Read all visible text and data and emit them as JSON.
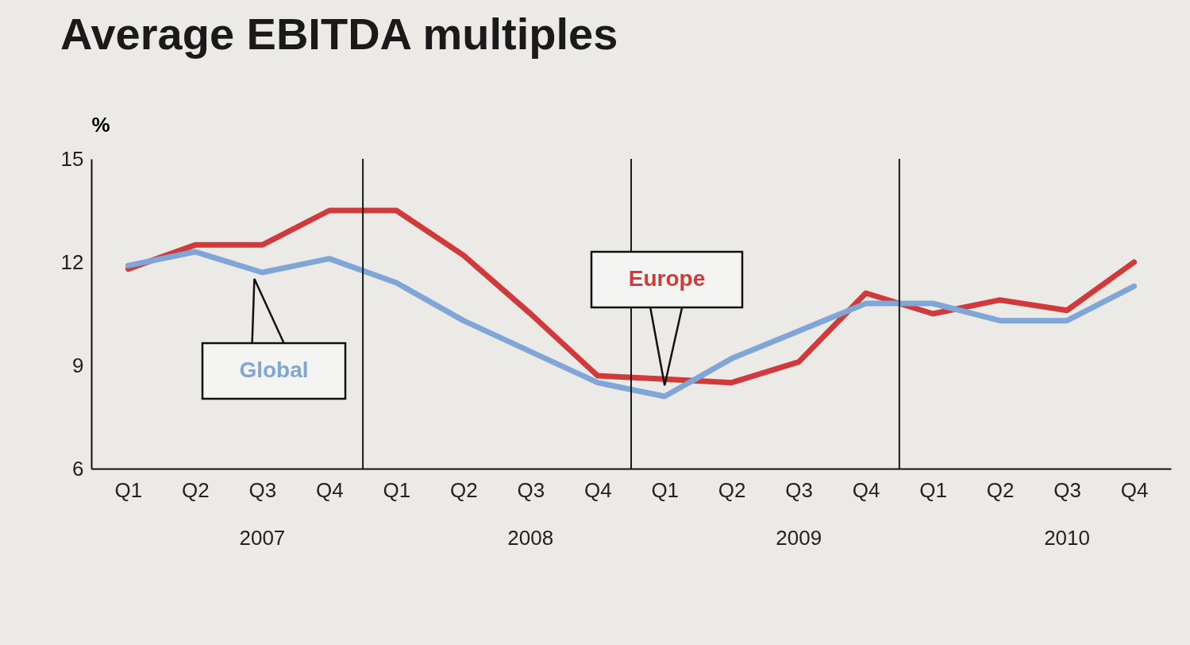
{
  "chart_data": {
    "type": "line",
    "title": "Average EBITDA multiples",
    "ylabel": "%",
    "categories": [
      "Q1",
      "Q2",
      "Q3",
      "Q4",
      "Q1",
      "Q2",
      "Q3",
      "Q4",
      "Q1",
      "Q2",
      "Q3",
      "Q4",
      "Q1",
      "Q2",
      "Q3",
      "Q4"
    ],
    "ylim": [
      6,
      15
    ],
    "yticks": [
      6,
      9,
      12,
      15
    ],
    "series": [
      {
        "name": "Europe",
        "color": "#d03a3a",
        "values": [
          11.8,
          12.5,
          12.5,
          13.5,
          13.5,
          12.2,
          10.5,
          8.7,
          8.6,
          8.5,
          9.1,
          11.1,
          10.5,
          10.9,
          10.6,
          12.0
        ]
      },
      {
        "name": "Global",
        "color": "#7fa6d6",
        "values": [
          11.9,
          12.3,
          11.7,
          12.1,
          11.4,
          10.3,
          9.4,
          8.5,
          8.1,
          9.2,
          10.0,
          10.8,
          10.8,
          10.3,
          10.3,
          11.3
        ]
      }
    ],
    "annotations": [
      "2007",
      "2008",
      "2009",
      "2010"
    ],
    "grid": false,
    "legend": false,
    "marker": "none",
    "line_style": "solid"
  }
}
